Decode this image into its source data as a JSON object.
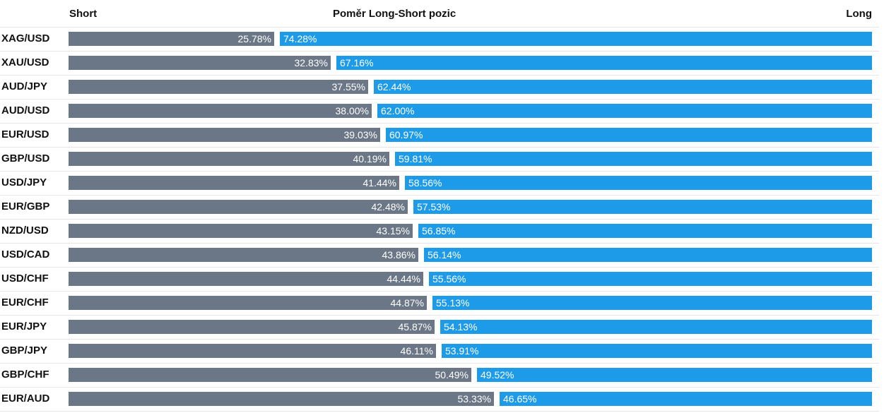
{
  "chart_data": {
    "type": "bar",
    "title": "Poměr Long-Short pozic",
    "header_left": "Short",
    "header_right": "Long",
    "unit": "%",
    "categories": [
      "XAG/USD",
      "XAU/USD",
      "AUD/JPY",
      "AUD/USD",
      "EUR/USD",
      "GBP/USD",
      "USD/JPY",
      "EUR/GBP",
      "NZD/USD",
      "USD/CAD",
      "USD/CHF",
      "EUR/CHF",
      "EUR/JPY",
      "GBP/JPY",
      "GBP/CHF",
      "EUR/AUD"
    ],
    "series": [
      {
        "name": "Short",
        "values": [
          25.78,
          32.83,
          37.55,
          38.0,
          39.03,
          40.19,
          41.44,
          42.48,
          43.15,
          43.86,
          44.44,
          44.87,
          45.87,
          46.11,
          50.49,
          53.33
        ]
      },
      {
        "name": "Long",
        "values": [
          74.28,
          67.16,
          62.44,
          62.0,
          60.97,
          59.81,
          58.56,
          57.53,
          56.85,
          56.14,
          55.56,
          55.13,
          54.13,
          53.91,
          49.52,
          46.65
        ]
      }
    ],
    "value_labels_short": [
      "25.78%",
      "32.83%",
      "37.55%",
      "38.00%",
      "39.03%",
      "40.19%",
      "41.44%",
      "42.48%",
      "43.15%",
      "43.86%",
      "44.44%",
      "44.87%",
      "45.87%",
      "46.11%",
      "50.49%",
      "53.33%"
    ],
    "value_labels_long": [
      "74.28%",
      "67.16%",
      "62.44%",
      "62.00%",
      "60.97%",
      "59.81%",
      "58.56%",
      "57.53%",
      "56.85%",
      "56.14%",
      "55.56%",
      "55.13%",
      "54.13%",
      "53.91%",
      "49.52%",
      "46.65%"
    ],
    "colors": {
      "short": "#6b7786",
      "long": "#1e9be8"
    },
    "xlim": [
      0,
      100
    ],
    "grid": false,
    "legend": "none"
  }
}
